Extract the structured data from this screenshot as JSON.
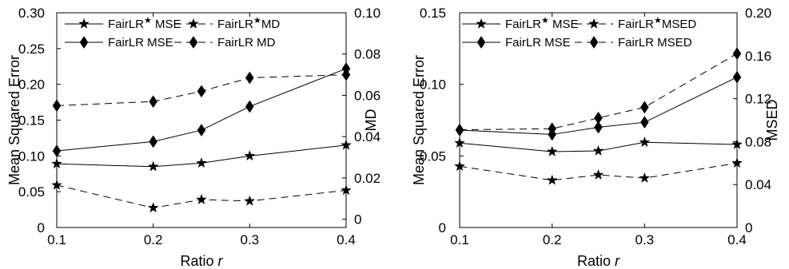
{
  "chart_data": [
    {
      "type": "line",
      "x": [
        0.1,
        0.2,
        0.25,
        0.3,
        0.4
      ],
      "xlabel": "Ratio",
      "xlabel_var": "r",
      "xlim": [
        0.1,
        0.4
      ],
      "x_ticks": [
        "0.1",
        "0.2",
        "0.3",
        "0.4"
      ],
      "ylabel": "Mean Squared Error",
      "ylim": [
        0,
        0.3
      ],
      "y_ticks": [
        "0",
        "0.05",
        "0.10",
        "0.15",
        "0.20",
        "0.25",
        "0.30"
      ],
      "y2label": "MD",
      "y2lim": [
        -0.004,
        0.1
      ],
      "y2_ticks": [
        "0",
        "0.02",
        "0.04",
        "0.06",
        "0.08",
        "0.10"
      ],
      "legend_position": "top",
      "series": [
        {
          "name": "FairLR",
          "name_sup": "★",
          "name_suffix": " MSE",
          "axis": "left",
          "marker": "star",
          "dash": "solid",
          "values": [
            0.089,
            0.085,
            0.09,
            0.1,
            0.115
          ]
        },
        {
          "name": "FairLR",
          "name_sup": "★",
          "name_suffix": "MD",
          "axis": "right",
          "marker": "star",
          "dash": "dashed",
          "values": [
            0.0165,
            0.0055,
            0.0095,
            0.0088,
            0.014
          ]
        },
        {
          "name": "FairLR",
          "name_sup": "",
          "name_suffix": " MSE",
          "axis": "left",
          "marker": "diamond",
          "dash": "solid",
          "values": [
            0.107,
            0.12,
            0.136,
            0.169,
            0.222
          ]
        },
        {
          "name": "FairLR",
          "name_sup": "",
          "name_suffix": " MD",
          "axis": "right",
          "marker": "diamond",
          "dash": "dashed",
          "values": [
            0.055,
            0.057,
            0.062,
            0.0685,
            0.07
          ]
        }
      ]
    },
    {
      "type": "line",
      "x": [
        0.1,
        0.2,
        0.25,
        0.3,
        0.4
      ],
      "xlabel": "Ratio",
      "xlabel_var": "r",
      "xlim": [
        0.1,
        0.4
      ],
      "x_ticks": [
        "0.1",
        "0.2",
        "0.3",
        "0.4"
      ],
      "ylabel": "Mean Squared Error",
      "ylim": [
        0,
        0.15
      ],
      "y_ticks": [
        "0",
        "0.05",
        "0.10",
        "0.15"
      ],
      "y2label": "MSED",
      "y2lim": [
        0,
        0.2
      ],
      "y2_ticks": [
        "0",
        "0.04",
        "0.08",
        "0.12",
        "0.16",
        "0.20"
      ],
      "legend_position": "top",
      "series": [
        {
          "name": "FairLR",
          "name_sup": "★",
          "name_suffix": " MSE",
          "axis": "left",
          "marker": "star",
          "dash": "solid",
          "values": [
            0.059,
            0.053,
            0.0535,
            0.0595,
            0.058
          ]
        },
        {
          "name": "FairLR",
          "name_sup": "★",
          "name_suffix": "MSED",
          "axis": "right",
          "marker": "star",
          "dash": "dashed",
          "values": [
            0.057,
            0.044,
            0.049,
            0.046,
            0.06
          ]
        },
        {
          "name": "FairLR",
          "name_sup": "",
          "name_suffix": " MSE",
          "axis": "left",
          "marker": "diamond",
          "dash": "solid",
          "values": [
            0.068,
            0.065,
            0.07,
            0.0735,
            0.105
          ]
        },
        {
          "name": "FairLR",
          "name_sup": "",
          "name_suffix": " MSED",
          "axis": "right",
          "marker": "diamond",
          "dash": "dashed",
          "values": [
            0.091,
            0.092,
            0.102,
            0.112,
            0.162
          ]
        }
      ]
    }
  ]
}
